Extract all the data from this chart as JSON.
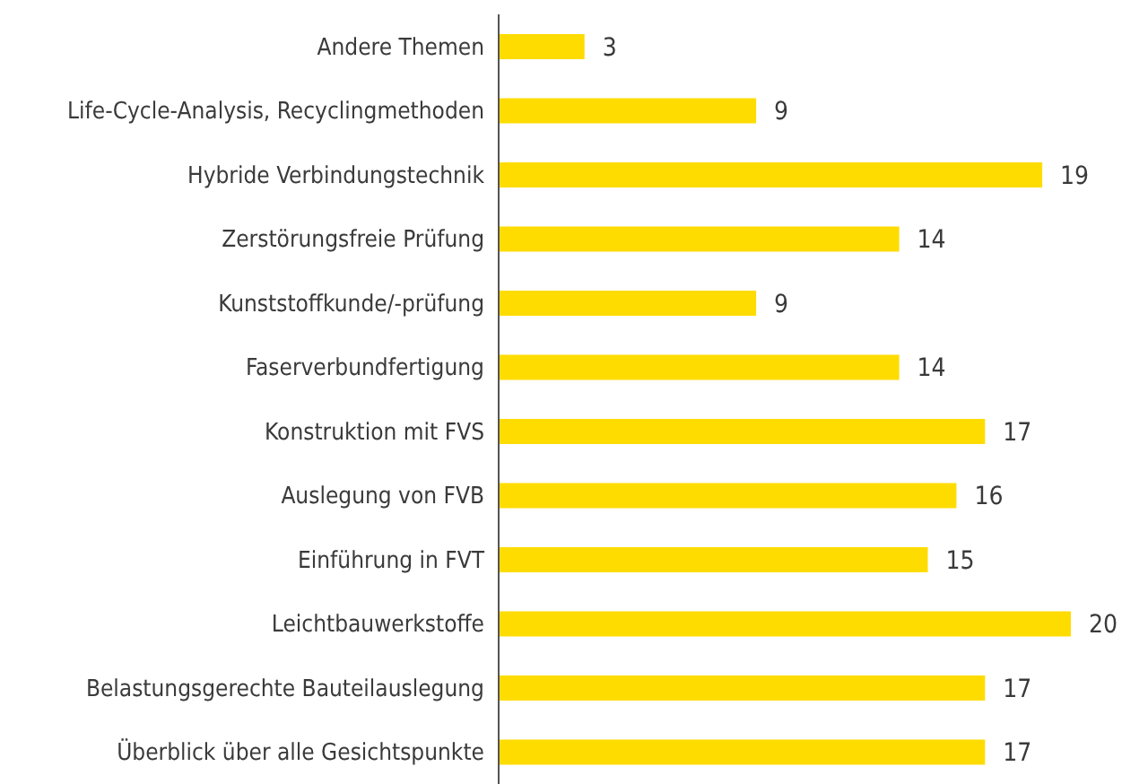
{
  "chart_data": {
    "type": "bar",
    "orientation": "horizontal",
    "categories": [
      "Andere Themen",
      "Life-Cycle-Analysis, Recyclingmethoden",
      "Hybride Verbindungstechnik",
      "Zerstörungsfreie Prüfung",
      "Kunststoffkunde/-prüfung",
      "Faserverbundfertigung",
      "Konstruktion mit FVS",
      "Auslegung von FVB",
      "Einführung in FVT",
      "Leichtbauwerkstoffe",
      "Belastungsgerechte Bauteilauslegung",
      "Überblick über alle Gesichtspunkte"
    ],
    "values": [
      3,
      9,
      19,
      14,
      9,
      14,
      17,
      16,
      15,
      20,
      17,
      17
    ],
    "color": "#ffdc00",
    "data_labels": true,
    "tick_labels": "y",
    "grid": false,
    "legend": false
  }
}
